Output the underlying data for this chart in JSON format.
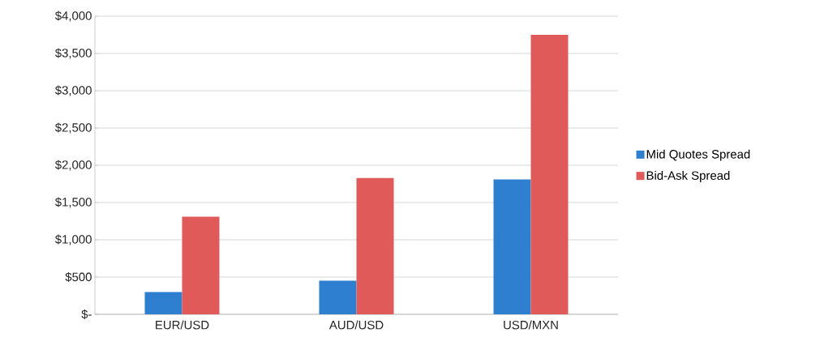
{
  "chart_data": {
    "type": "bar",
    "categories": [
      "EUR/USD",
      "AUD/USD",
      "USD/MXN"
    ],
    "series": [
      {
        "name": "Mid Quotes Spread",
        "color": "#2e7fd0",
        "values": [
          300,
          450,
          1810
        ]
      },
      {
        "name": "Bid-Ask Spread",
        "color": "#e05a5a",
        "values": [
          1310,
          1830,
          3750
        ]
      }
    ],
    "ylim": [
      0,
      4000
    ],
    "yticks": [
      {
        "value": 0,
        "label": "$-"
      },
      {
        "value": 500,
        "label": "$500"
      },
      {
        "value": 1000,
        "label": "$1,000"
      },
      {
        "value": 1500,
        "label": "$1,500"
      },
      {
        "value": 2000,
        "label": "$2,000"
      },
      {
        "value": 2500,
        "label": "$2,500"
      },
      {
        "value": 3000,
        "label": "$3,000"
      },
      {
        "value": 3500,
        "label": "$3,500"
      },
      {
        "value": 4000,
        "label": "$4,000"
      }
    ],
    "grid": "y",
    "legend": "right"
  }
}
